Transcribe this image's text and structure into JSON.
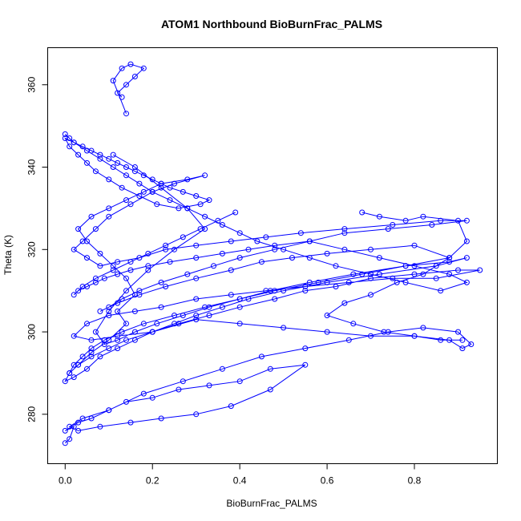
{
  "chart_data": {
    "type": "line",
    "title": "ATOM1 Northbound BioBurnFrac_PALMS",
    "xlabel": "BioBurnFrac_PALMS",
    "ylabel": "Theta (K)",
    "xlim": [
      -0.04,
      0.99
    ],
    "ylim": [
      268,
      369
    ],
    "x_ticks": [
      0.0,
      0.2,
      0.4,
      0.6,
      0.8
    ],
    "x_tick_labels": [
      "0.0",
      "0.2",
      "0.4",
      "0.6",
      "0.8"
    ],
    "y_ticks": [
      280,
      300,
      320,
      340,
      360
    ],
    "y_tick_labels": [
      "280",
      "300",
      "320",
      "340",
      "360"
    ],
    "grid": false,
    "legend": "none",
    "color": "#0000ff",
    "series": [
      {
        "marker": "open-circle",
        "x": [
          0.0,
          0.01,
          0.02,
          0.0,
          0.03,
          0.06,
          0.1,
          0.14,
          0.2,
          0.26,
          0.33,
          0.4,
          0.47,
          0.55,
          0.47,
          0.38,
          0.3,
          0.22,
          0.15,
          0.08,
          0.03,
          0.01,
          0.04,
          0.1,
          0.18,
          0.27,
          0.36,
          0.45,
          0.55,
          0.65,
          0.74,
          0.82,
          0.9,
          0.93,
          0.91,
          0.88,
          0.8,
          0.7,
          0.6,
          0.5,
          0.4,
          0.3,
          0.2,
          0.12,
          0.06,
          0.02,
          0.05,
          0.1,
          0.16,
          0.22,
          0.3,
          0.38,
          0.46,
          0.55,
          0.65,
          0.75,
          0.85,
          0.95,
          0.9,
          0.8,
          0.7,
          0.62,
          0.55,
          0.48,
          0.4,
          0.33,
          0.26,
          0.2,
          0.14,
          0.1,
          0.06,
          0.03,
          0.01,
          0.0,
          0.02,
          0.05,
          0.08,
          0.12,
          0.16,
          0.2,
          0.25,
          0.3,
          0.36,
          0.42,
          0.5,
          0.6,
          0.72,
          0.85,
          0.92,
          0.88,
          0.78,
          0.68,
          0.58,
          0.48,
          0.4,
          0.32,
          0.25,
          0.18,
          0.13,
          0.09,
          0.06,
          0.04,
          0.02,
          0.01,
          0.03,
          0.06,
          0.1,
          0.14,
          0.12,
          0.16,
          0.14,
          0.11,
          0.08,
          0.05,
          0.03,
          0.06,
          0.1,
          0.14,
          0.18,
          0.22,
          0.28,
          0.32,
          0.25,
          0.2,
          0.15,
          0.1,
          0.07,
          0.04,
          0.02,
          0.05,
          0.08,
          0.12,
          0.17,
          0.23,
          0.3,
          0.38,
          0.46,
          0.54,
          0.64,
          0.75,
          0.86,
          0.92,
          0.84,
          0.74,
          0.64,
          0.56,
          0.48,
          0.4,
          0.34,
          0.28,
          0.22,
          0.17,
          0.13,
          0.1,
          0.08,
          0.12,
          0.17,
          0.23,
          0.3,
          0.38,
          0.45,
          0.52,
          0.6,
          0.7,
          0.8,
          0.88,
          0.78,
          0.66,
          0.56,
          0.47,
          0.4,
          0.33,
          0.27,
          0.21,
          0.16,
          0.12,
          0.09,
          0.07,
          0.1,
          0.14,
          0.19,
          0.25,
          0.32,
          0.28,
          0.22,
          0.16,
          0.11
        ],
        "y": [
          273,
          274,
          277,
          276,
          278,
          279,
          281,
          283,
          284,
          286,
          287,
          288,
          291,
          292,
          286,
          282,
          280,
          279,
          278,
          277,
          276,
          277,
          279,
          281,
          285,
          288,
          291,
          294,
          296,
          298,
          300,
          301,
          300,
          297,
          296,
          298,
          299,
          299,
          300,
          301,
          302,
          303,
          300,
          299,
          298,
          299,
          302,
          304,
          305,
          306,
          308,
          309,
          310,
          311,
          312,
          313,
          313,
          315,
          315,
          314,
          313,
          311,
          310,
          308,
          306,
          304,
          302,
          300,
          298,
          296,
          294,
          292,
          290,
          288,
          289,
          291,
          294,
          296,
          298,
          300,
          302,
          304,
          306,
          308,
          310,
          312,
          314,
          316,
          318,
          317,
          316,
          314,
          312,
          310,
          308,
          306,
          304,
          302,
          300,
          298,
          296,
          294,
          292,
          290,
          292,
          295,
          298,
          302,
          305,
          309,
          313,
          316,
          319,
          322,
          325,
          328,
          330,
          332,
          334,
          336,
          337,
          338,
          336,
          334,
          331,
          328,
          325,
          322,
          320,
          318,
          316,
          317,
          318,
          320,
          321,
          322,
          323,
          324,
          325,
          326,
          327,
          327,
          326,
          325,
          324,
          322,
          320,
          318,
          316,
          314,
          312,
          310,
          308,
          306,
          305,
          307,
          309,
          311,
          313,
          315,
          317,
          318,
          319,
          320,
          321,
          318,
          316,
          314,
          312,
          310,
          308,
          306,
          304,
          302,
          300,
          298,
          297,
          300,
          305,
          310,
          315,
          320,
          325,
          330,
          335,
          340,
          343
        ]
      },
      {
        "marker": "open-circle",
        "x": [
          0.0,
          0.01,
          0.02,
          0.04,
          0.06,
          0.08,
          0.1,
          0.12,
          0.14,
          0.16,
          0.18,
          0.2,
          0.22,
          0.24,
          0.27,
          0.3,
          0.33,
          0.31,
          0.26,
          0.21,
          0.17,
          0.13,
          0.1,
          0.07,
          0.05,
          0.03,
          0.01,
          0.0,
          0.02,
          0.05,
          0.08,
          0.11,
          0.14,
          0.17,
          0.2,
          0.24,
          0.28,
          0.32,
          0.36,
          0.4,
          0.44,
          0.5,
          0.56,
          0.62,
          0.7,
          0.78,
          0.86,
          0.92,
          0.88,
          0.8,
          0.72,
          0.64,
          0.56,
          0.48,
          0.42,
          0.36,
          0.3,
          0.24,
          0.19,
          0.15,
          0.12,
          0.09,
          0.07,
          0.05,
          0.03,
          0.02,
          0.04,
          0.07,
          0.11,
          0.15,
          0.19,
          0.23,
          0.27,
          0.31,
          0.35,
          0.39
        ],
        "y": [
          348,
          347,
          346,
          345,
          344,
          343,
          342,
          341,
          340,
          339,
          338,
          337,
          336,
          335,
          334,
          333,
          332,
          331,
          330,
          331,
          333,
          335,
          337,
          339,
          341,
          343,
          345,
          347,
          346,
          344,
          342,
          340,
          338,
          336,
          334,
          332,
          330,
          328,
          326,
          324,
          322,
          320,
          318,
          316,
          314,
          312,
          310,
          312,
          314,
          316,
          318,
          320,
          322,
          321,
          320,
          319,
          318,
          317,
          316,
          315,
          314,
          313,
          312,
          311,
          310,
          309,
          311,
          313,
          315,
          317,
          319,
          321,
          323,
          325,
          327,
          329
        ]
      },
      {
        "marker": "open-circle",
        "x": [
          0.13,
          0.12,
          0.14,
          0.16,
          0.18,
          0.15,
          0.13,
          0.11,
          0.14
        ],
        "y": [
          357,
          358,
          360,
          362,
          364,
          365,
          364,
          361,
          353
        ]
      },
      {
        "marker": "open-circle",
        "x": [
          0.68,
          0.72,
          0.78,
          0.82,
          0.9,
          0.92,
          0.88,
          0.82,
          0.76,
          0.7,
          0.64,
          0.6,
          0.66,
          0.73,
          0.8,
          0.86,
          0.91
        ],
        "y": [
          329,
          328,
          327,
          328,
          327,
          322,
          318,
          314,
          312,
          309,
          307,
          304,
          302,
          300,
          299,
          298,
          298
        ]
      }
    ]
  }
}
